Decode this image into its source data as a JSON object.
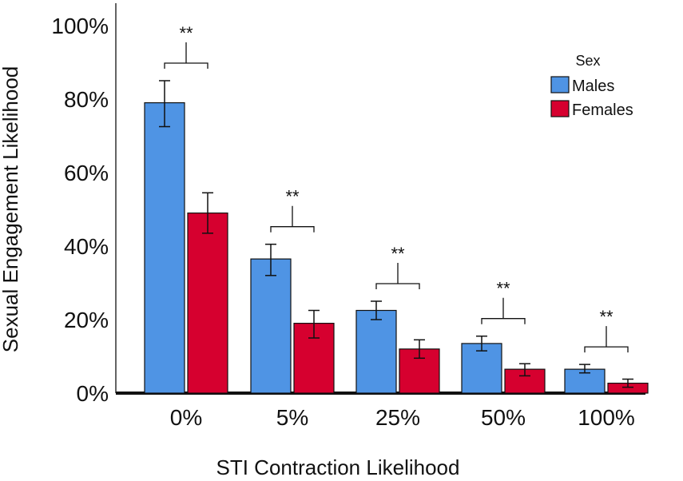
{
  "chart_data": {
    "type": "bar",
    "title": "",
    "xlabel": "STI Contraction Likelihood",
    "ylabel": "Sexual Engagement Likelihood",
    "categories": [
      "0%",
      "5%",
      "25%",
      "50%",
      "100%"
    ],
    "ylim": [
      0,
      100
    ],
    "yticks": [
      {
        "value": 0,
        "label": "0%"
      },
      {
        "value": 20,
        "label": "20%"
      },
      {
        "value": 40,
        "label": "40%"
      },
      {
        "value": 60,
        "label": "60%"
      },
      {
        "value": 80,
        "label": "80%"
      },
      {
        "value": 100,
        "label": "100%"
      }
    ],
    "legend_title": "Sex",
    "legend_position": "top-right",
    "series": [
      {
        "name": "Males",
        "color": "#4f94e4",
        "values": [
          79,
          36.5,
          22.5,
          13.5,
          6.5
        ],
        "err_low": [
          72.5,
          32,
          20,
          11.5,
          5.5
        ],
        "err_high": [
          85,
          40.5,
          25,
          15.5,
          7.8
        ]
      },
      {
        "name": "Females",
        "color": "#d6002f",
        "values": [
          49,
          19,
          12,
          6.5,
          2.7
        ],
        "err_low": [
          43.5,
          15,
          9.5,
          4.7,
          1.6
        ],
        "err_high": [
          54.5,
          22.5,
          14.5,
          8,
          3.8
        ]
      }
    ],
    "significance": [
      {
        "category": "0%",
        "label": "**"
      },
      {
        "category": "5%",
        "label": "**"
      },
      {
        "category": "25%",
        "label": "**"
      },
      {
        "category": "50%",
        "label": "**"
      },
      {
        "category": "100%",
        "label": "**"
      }
    ]
  }
}
